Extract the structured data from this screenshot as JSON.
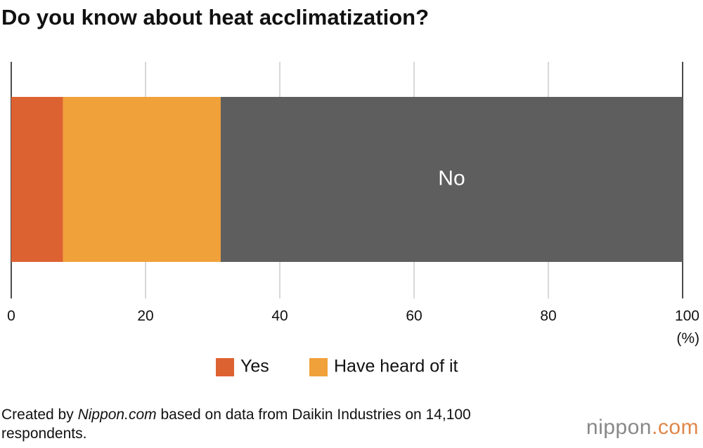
{
  "chart_data": {
    "type": "stacked_bar",
    "orientation": "horizontal",
    "title": "Do you know about heat acclimatization?",
    "series": [
      {
        "name": "Yes",
        "color": "#dd6232",
        "values": [
          7.7
        ]
      },
      {
        "name": "Have heard of it",
        "color": "#f0a13a",
        "values": [
          23.5
        ]
      },
      {
        "name": "No",
        "color": "#5e5e5e",
        "values": [
          68.8
        ]
      }
    ],
    "xlim": [
      0,
      100
    ],
    "xticks": [
      0,
      20,
      40,
      60,
      80,
      100
    ],
    "x_label": "(%)",
    "grid": true,
    "source_parts": [
      "Created by ",
      "Nippon.com",
      " based on data from Daikin Industries on 14,100 respondents."
    ],
    "logo_parts": [
      "nippon",
      ".com"
    ]
  }
}
